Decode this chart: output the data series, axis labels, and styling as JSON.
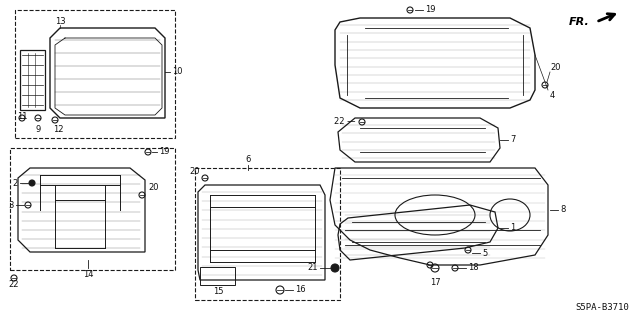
{
  "diagram_code": "S5PA-B3710",
  "bg": "#ffffff",
  "lc": "#1a1a1a",
  "tc": "#111111",
  "fs": 6.0,
  "fs_sm": 5.5
}
